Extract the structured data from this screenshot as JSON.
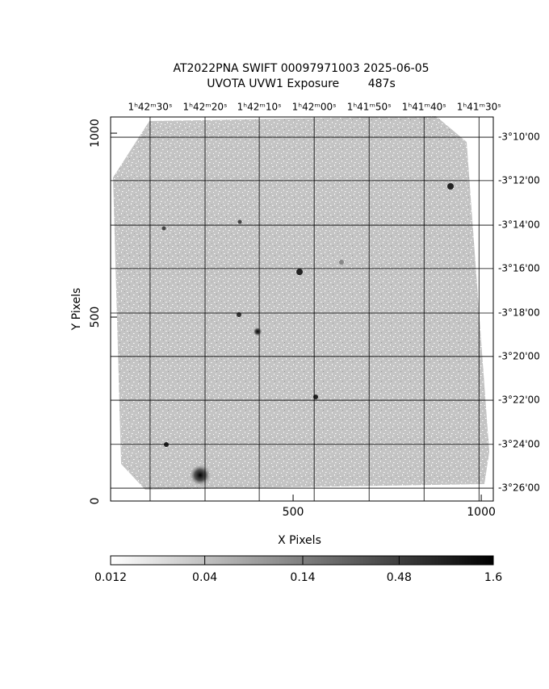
{
  "chart_data": {
    "type": "image",
    "title": "AT2022PNA SWIFT 00097971003 2025-06-05",
    "subtitle": "UVOTA UVW1 Exposure        487s",
    "xlabel": "X Pixels",
    "ylabel": "Y Pixels",
    "xlim": [
      15,
      1032
    ],
    "ylim": [
      0,
      1044
    ],
    "xticks": [
      500,
      1000
    ],
    "yticks": [
      0,
      500,
      1000
    ],
    "ra_ticks": [
      {
        "value": 120,
        "label": "1ʰ42ᵐ30ˢ"
      },
      {
        "value": 266,
        "label": "1ʰ42ᵐ20ˢ"
      },
      {
        "value": 410,
        "label": "1ʰ42ᵐ10ˢ"
      },
      {
        "value": 556,
        "label": "1ʰ42ᵐ00ˢ"
      },
      {
        "value": 702,
        "label": "1ʰ41ᵐ50ˢ"
      },
      {
        "value": 848,
        "label": "1ʰ41ᵐ40ˢ"
      },
      {
        "value": 994,
        "label": "1ʰ41ᵐ30ˢ"
      }
    ],
    "dec_ticks": [
      {
        "value": 989,
        "label": "-3°10'00"
      },
      {
        "value": 871,
        "label": "-3°12'00"
      },
      {
        "value": 750,
        "label": "-3°14'00"
      },
      {
        "value": 632,
        "label": "-3°16'00"
      },
      {
        "value": 511,
        "label": "-3°18'00"
      },
      {
        "value": 393,
        "label": "-3°20'00"
      },
      {
        "value": 274,
        "label": "-3°22'00"
      },
      {
        "value": 154,
        "label": "-3°24'00"
      },
      {
        "value": 35,
        "label": "-3°26'00"
      }
    ],
    "grid": true,
    "colorbar": {
      "lim": [
        0.012,
        1.6
      ],
      "log": true,
      "ticks": [
        0.012,
        0.04,
        0.14,
        0.48,
        1.6
      ]
    }
  }
}
